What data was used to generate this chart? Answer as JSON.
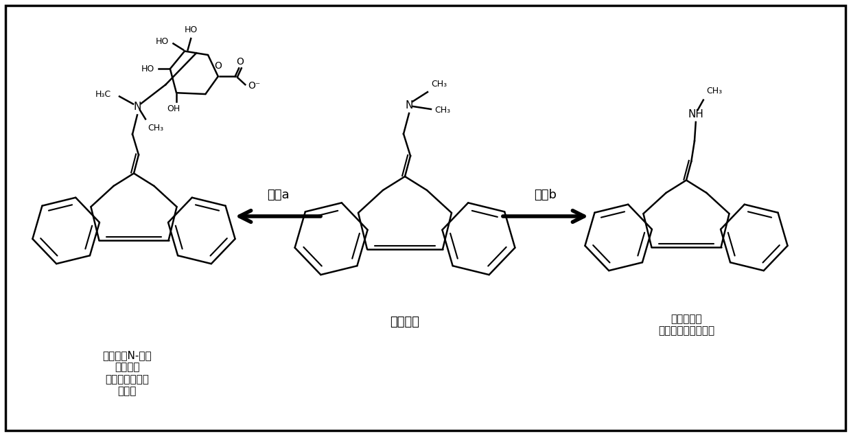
{
  "title": "",
  "background_color": "#ffffff",
  "border_color": "#000000",
  "label_left": "环苯扎林N-葡萄\n糖醒酸苷\n（快速排出，非\n活性）",
  "label_center": "环苯扎林",
  "label_right": "非环苯扎林\n（缓慢代谢，活性）",
  "arrow_left_label": "途径a",
  "arrow_right_label": "途径b",
  "text_color": "#000000",
  "figsize": [
    12.4,
    6.35
  ],
  "dpi": 100
}
